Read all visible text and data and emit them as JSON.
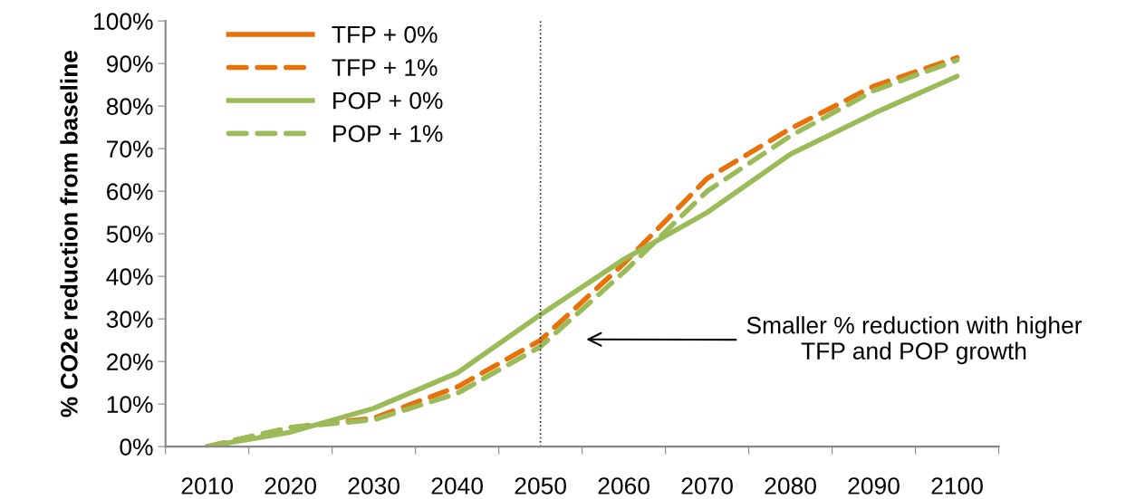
{
  "chart_data": {
    "type": "line",
    "ylabel": "% CO2e reduction from baseline",
    "x": [
      2010,
      2020,
      2030,
      2040,
      2050,
      2060,
      2070,
      2080,
      2090,
      2100
    ],
    "series": [
      {
        "name": "TFP + 0%",
        "color": "#e8710a",
        "line_style": "solid",
        "values": [
          null,
          null,
          null,
          null,
          null,
          null,
          null,
          null,
          null,
          null
        ]
      },
      {
        "name": "TFP + 1%",
        "color": "#e8710a",
        "line_style": "dashed",
        "values": [
          0,
          4.5,
          6.7,
          14,
          25,
          43,
          63,
          74.7,
          84.7,
          91.4
        ]
      },
      {
        "name": "POP + 0%",
        "color": "#9bbb59",
        "line_style": "solid",
        "values": [
          0,
          3.4,
          9,
          17.3,
          31,
          44,
          55,
          68.7,
          78.3,
          87
        ]
      },
      {
        "name": "POP + 1%",
        "color": "#9bbb59",
        "line_style": "dashed",
        "values": [
          0,
          4.5,
          6.3,
          12.5,
          23.5,
          41,
          60,
          73,
          83.6,
          90.8
        ]
      }
    ],
    "xlim": [
      2005,
      2105
    ],
    "xticks": [
      {
        "value": 2005,
        "label": null
      },
      {
        "value": 2010,
        "label": "2010"
      },
      {
        "value": 2015,
        "label": null
      },
      {
        "value": 2020,
        "label": "2020"
      },
      {
        "value": 2025,
        "label": null
      },
      {
        "value": 2030,
        "label": "2030"
      },
      {
        "value": 2035,
        "label": null
      },
      {
        "value": 2040,
        "label": "2040"
      },
      {
        "value": 2045,
        "label": null
      },
      {
        "value": 2050,
        "label": "2050"
      },
      {
        "value": 2055,
        "label": null
      },
      {
        "value": 2060,
        "label": "2060"
      },
      {
        "value": 2065,
        "label": null
      },
      {
        "value": 2070,
        "label": "2070"
      },
      {
        "value": 2075,
        "label": null
      },
      {
        "value": 2080,
        "label": "2080"
      },
      {
        "value": 2085,
        "label": null
      },
      {
        "value": 2090,
        "label": "2090"
      },
      {
        "value": 2095,
        "label": null
      },
      {
        "value": 2100,
        "label": "2100"
      },
      {
        "value": 2105,
        "label": null
      }
    ],
    "ylim": [
      0,
      100
    ],
    "yticks": [
      {
        "value": 0,
        "label": "0%"
      },
      {
        "value": 10,
        "label": "10%"
      },
      {
        "value": 20,
        "label": "20%"
      },
      {
        "value": 30,
        "label": "30%"
      },
      {
        "value": 40,
        "label": "40%"
      },
      {
        "value": 50,
        "label": "50%"
      },
      {
        "value": 60,
        "label": "60%"
      },
      {
        "value": 70,
        "label": "70%"
      },
      {
        "value": 80,
        "label": "80%"
      },
      {
        "value": 90,
        "label": "90%"
      },
      {
        "value": 100,
        "label": "100%"
      }
    ],
    "ref_lines": [
      {
        "axis": "x",
        "value": 2050,
        "color": "#1f2a44",
        "line_style": "dotted"
      }
    ],
    "annotations": [
      "Smaller % reduction with higher\nTFP and POP growth"
    ],
    "grid": false,
    "legend": "top left",
    "marker": "none"
  }
}
